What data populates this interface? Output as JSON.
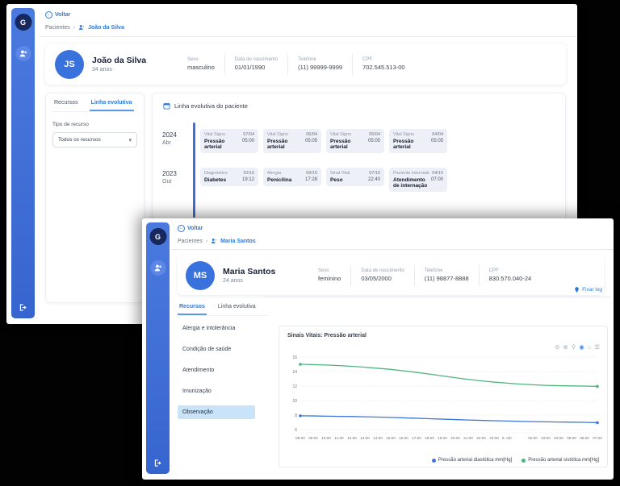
{
  "app": {
    "logo_letter": "G"
  },
  "colors": {
    "sidebar_blue": "#3e6fd4",
    "accent_blue": "#2b7bde",
    "avatar_blue": "#3a72dd",
    "timeline_card_bg": "#eef0f7",
    "selected_item_bg": "#c9e4f8",
    "chart_blue": "#3d76d9",
    "chart_green": "#4fb47c"
  },
  "window_back": {
    "back_label": "Voltar",
    "breadcrumb": {
      "root": "Pacientes",
      "current": "João da Silva"
    },
    "patient": {
      "initials": "JS",
      "name": "João da Silva",
      "age": "34 anos",
      "fields": [
        {
          "label": "Sexo",
          "value": "masculino"
        },
        {
          "label": "Data de nascimento",
          "value": "01/01/1990"
        },
        {
          "label": "Telefone",
          "value": "(11) 99999-9999"
        },
        {
          "label": "CPF",
          "value": "702.545.513-00"
        }
      ]
    },
    "panel": {
      "tabs": [
        {
          "label": "Recursos",
          "active": false
        },
        {
          "label": "Linha evolutiva",
          "active": true
        }
      ],
      "filter_label": "Tipo de recurso",
      "filter_value": "Todos os recursos"
    },
    "timeline": {
      "title": "Linha evolutiva do paciente",
      "groups": [
        {
          "year": "2024",
          "month": "Abr",
          "events": [
            {
              "type": "Vital Signs",
              "date": "07/04",
              "title": "Pressão arterial",
              "time": "05:00"
            },
            {
              "type": "Vital Signs",
              "date": "06/04",
              "title": "Pressão arterial",
              "time": "05:05"
            },
            {
              "type": "Vital Signs",
              "date": "05/04",
              "title": "Pressão arterial",
              "time": "05:05"
            },
            {
              "type": "Vital Signs",
              "date": "04/04",
              "title": "Pressão arterial",
              "time": "05:05"
            }
          ]
        },
        {
          "year": "2023",
          "month": "Out",
          "events": [
            {
              "type": "Diagnóstico",
              "date": "10/10",
              "title": "Diabetes",
              "time": "19:12"
            },
            {
              "type": "Alergia",
              "date": "09/10",
              "title": "Penicilina",
              "time": "17:28"
            },
            {
              "type": "Sinal Vital",
              "date": "07/10",
              "title": "Peso",
              "time": "22:40"
            },
            {
              "type": "Paciente internado",
              "date": "04/10",
              "title": "Atendimento de internação",
              "time": "07:00"
            }
          ]
        }
      ]
    }
  },
  "window_front": {
    "back_label": "Voltar",
    "breadcrumb": {
      "root": "Pacientes",
      "current": "Maria Santos"
    },
    "patient": {
      "initials": "MS",
      "name": "Maria Santos",
      "age": "24 anos",
      "fields": [
        {
          "label": "Sexo",
          "value": "feminino"
        },
        {
          "label": "Data de nascimento",
          "value": "03/05/2000"
        },
        {
          "label": "Telefone",
          "value": "(11) 98877-8888"
        },
        {
          "label": "CPF",
          "value": "830.570.040-24"
        }
      ]
    },
    "panel": {
      "tabs": [
        {
          "label": "Recursos",
          "active": true
        },
        {
          "label": "Linha evolutiva",
          "active": false
        }
      ],
      "items": [
        "Alergia e intolerância",
        "Condição de saúde",
        "Atendimento",
        "Imunização",
        "Observação"
      ],
      "selected_item": "Observação"
    },
    "pin_link": "Fixar log"
  },
  "chart_toolbar": [
    {
      "name": "zoom-out-icon",
      "glyph": "⊖"
    },
    {
      "name": "zoom-in-icon",
      "glyph": "⊕"
    },
    {
      "name": "magnifier-icon",
      "glyph": "⚲"
    },
    {
      "name": "camera-icon",
      "glyph": "◉",
      "color": "#4c8bf5"
    },
    {
      "name": "home-icon",
      "glyph": "⌂"
    },
    {
      "name": "menu-icon",
      "glyph": "☰"
    }
  ],
  "chart_data": {
    "type": "line",
    "title": "Sinais Vitais: Pressão arterial",
    "ylim": [
      6,
      16
    ],
    "y_ticks": [
      16,
      14,
      12,
      10,
      8,
      6
    ],
    "grid": true,
    "legend_position": "bottom-right",
    "x_ticks": [
      "08:00",
      "09:00",
      "10:00",
      "11:00",
      "12:00",
      "13:00",
      "14:00",
      "15:00",
      "16:00",
      "17:00",
      "18:00",
      "19:00",
      "20:00",
      "21:00",
      "22:00",
      "23:00",
      "6. Abr",
      "",
      "02:00",
      "03:00",
      "04:00",
      "05:00",
      "06:00",
      "07:00"
    ],
    "series": [
      {
        "name": "Pressão arterial diastólica mm[Hg]",
        "color": "#3d76d9",
        "values": [
          7.9,
          7.88,
          7.85,
          7.82,
          7.8,
          7.76,
          7.72,
          7.68,
          7.62,
          7.56,
          7.5,
          7.44,
          7.38,
          7.32,
          7.27,
          7.22,
          7.18,
          7.14,
          7.1,
          7.07,
          7.04,
          7.02,
          7.0,
          6.95
        ]
      },
      {
        "name": "Pressão arterial sistólica mm[Hg]",
        "color": "#4fb47c",
        "values": [
          15.0,
          14.95,
          14.9,
          14.82,
          14.72,
          14.6,
          14.45,
          14.3,
          14.1,
          13.88,
          13.65,
          13.4,
          13.15,
          12.92,
          12.72,
          12.55,
          12.4,
          12.28,
          12.18,
          12.1,
          12.05,
          12.02,
          12.0,
          11.95
        ]
      }
    ]
  }
}
